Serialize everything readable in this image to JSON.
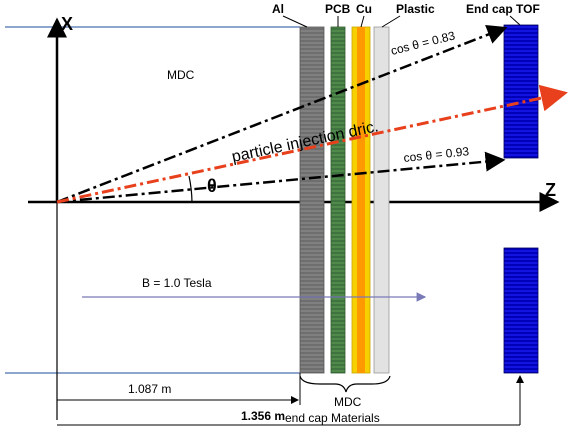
{
  "axes": {
    "x_label": "X",
    "z_label": "Z",
    "angle_symbol": "θ"
  },
  "region_label": "MDC",
  "materials": {
    "al": "Al",
    "pcb": "PCB",
    "cu": "Cu",
    "plastic": "Plastic"
  },
  "tof_label": "End cap TOF",
  "cos_upper": "cos θ = 0.83",
  "cos_lower": "cos θ = 0.93",
  "injection_label": "particle injection dric.",
  "field_label": "B = 1.0 Tesla",
  "dim_short": "1.087 m",
  "dim_long": "1.356 m",
  "brace_label": {
    "line1": "MDC",
    "line2": "end cap Materials"
  },
  "colors": {
    "al": "#808080",
    "pcb": "#4f8a4b",
    "cu_outer": "#f7d000",
    "cu_inner": "#ff9900",
    "plastic": "#e2e2e2",
    "tof": "#1414e0",
    "boundary_line": "#4a6fb0",
    "field_arrow": "#7a7ab8",
    "injection": "#e8401c"
  }
}
